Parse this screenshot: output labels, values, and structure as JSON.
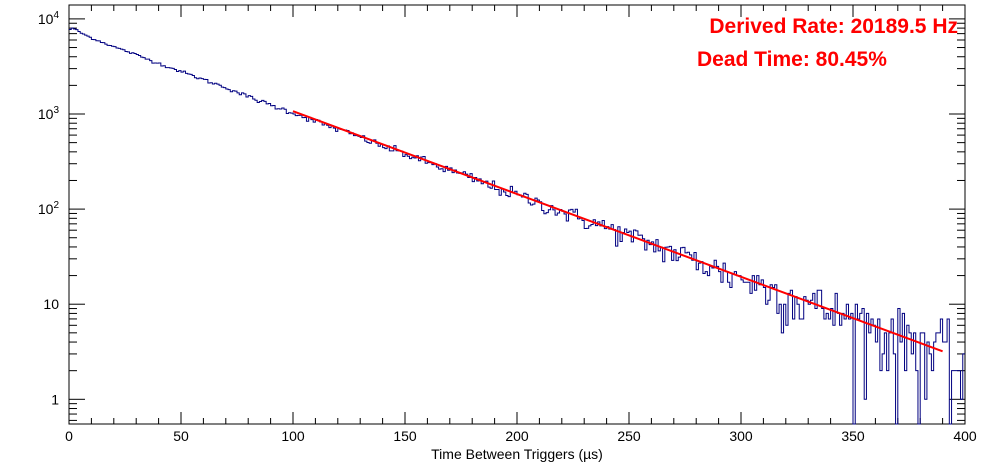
{
  "chart_data": {
    "type": "step",
    "title": "",
    "xlabel": "Time Between Triggers (µs)",
    "ylabel": "",
    "x_range": [
      0,
      400
    ],
    "y_range": [
      0.55,
      14000
    ],
    "y_scale": "log",
    "grid": false,
    "x_ticks": [
      0,
      50,
      100,
      150,
      200,
      250,
      300,
      350,
      400
    ],
    "x_tick_labels": [
      "0",
      "50",
      "100",
      "150",
      "200",
      "250",
      "300",
      "350",
      "400"
    ],
    "y_ticks": [
      1,
      10,
      100,
      1000,
      10000
    ],
    "y_tick_labels": [
      "1",
      "10",
      "10²",
      "10³",
      "10⁴"
    ],
    "series": [
      {
        "type": "histogram",
        "color": "#000080",
        "bin_width": 1,
        "x": [
          0,
          2,
          5,
          10,
          20,
          30,
          40,
          50,
          60,
          70,
          80,
          90,
          100,
          110,
          120,
          130,
          140,
          150,
          160,
          170,
          180,
          190,
          200,
          210,
          220,
          230,
          240,
          250,
          260,
          270,
          280,
          290,
          300,
          310,
          320,
          330,
          340,
          350,
          360,
          370,
          380,
          390,
          395,
          400
        ],
        "values": [
          7700,
          8000,
          7200,
          6300,
          5100,
          4200,
          3400,
          2800,
          2300,
          1900,
          1520,
          1240,
          1030,
          840,
          690,
          570,
          460,
          380,
          310,
          255,
          210,
          170,
          140,
          115,
          94,
          77,
          64,
          52,
          43,
          35,
          29,
          23,
          19,
          15.5,
          12.5,
          10.5,
          8.5,
          7,
          5.6,
          4.6,
          3.8,
          3.1,
          2.5,
          2.2
        ]
      },
      {
        "type": "fit",
        "color": "#ff0000",
        "x": [
          100,
          390
        ],
        "values": [
          1070,
          3.2
        ]
      }
    ],
    "annotations": [
      {
        "text": "Derived Rate: 20189.5 Hz",
        "color": "#ff0000"
      },
      {
        "text": "Dead Time: 80.45%",
        "color": "#ff0000"
      }
    ]
  }
}
